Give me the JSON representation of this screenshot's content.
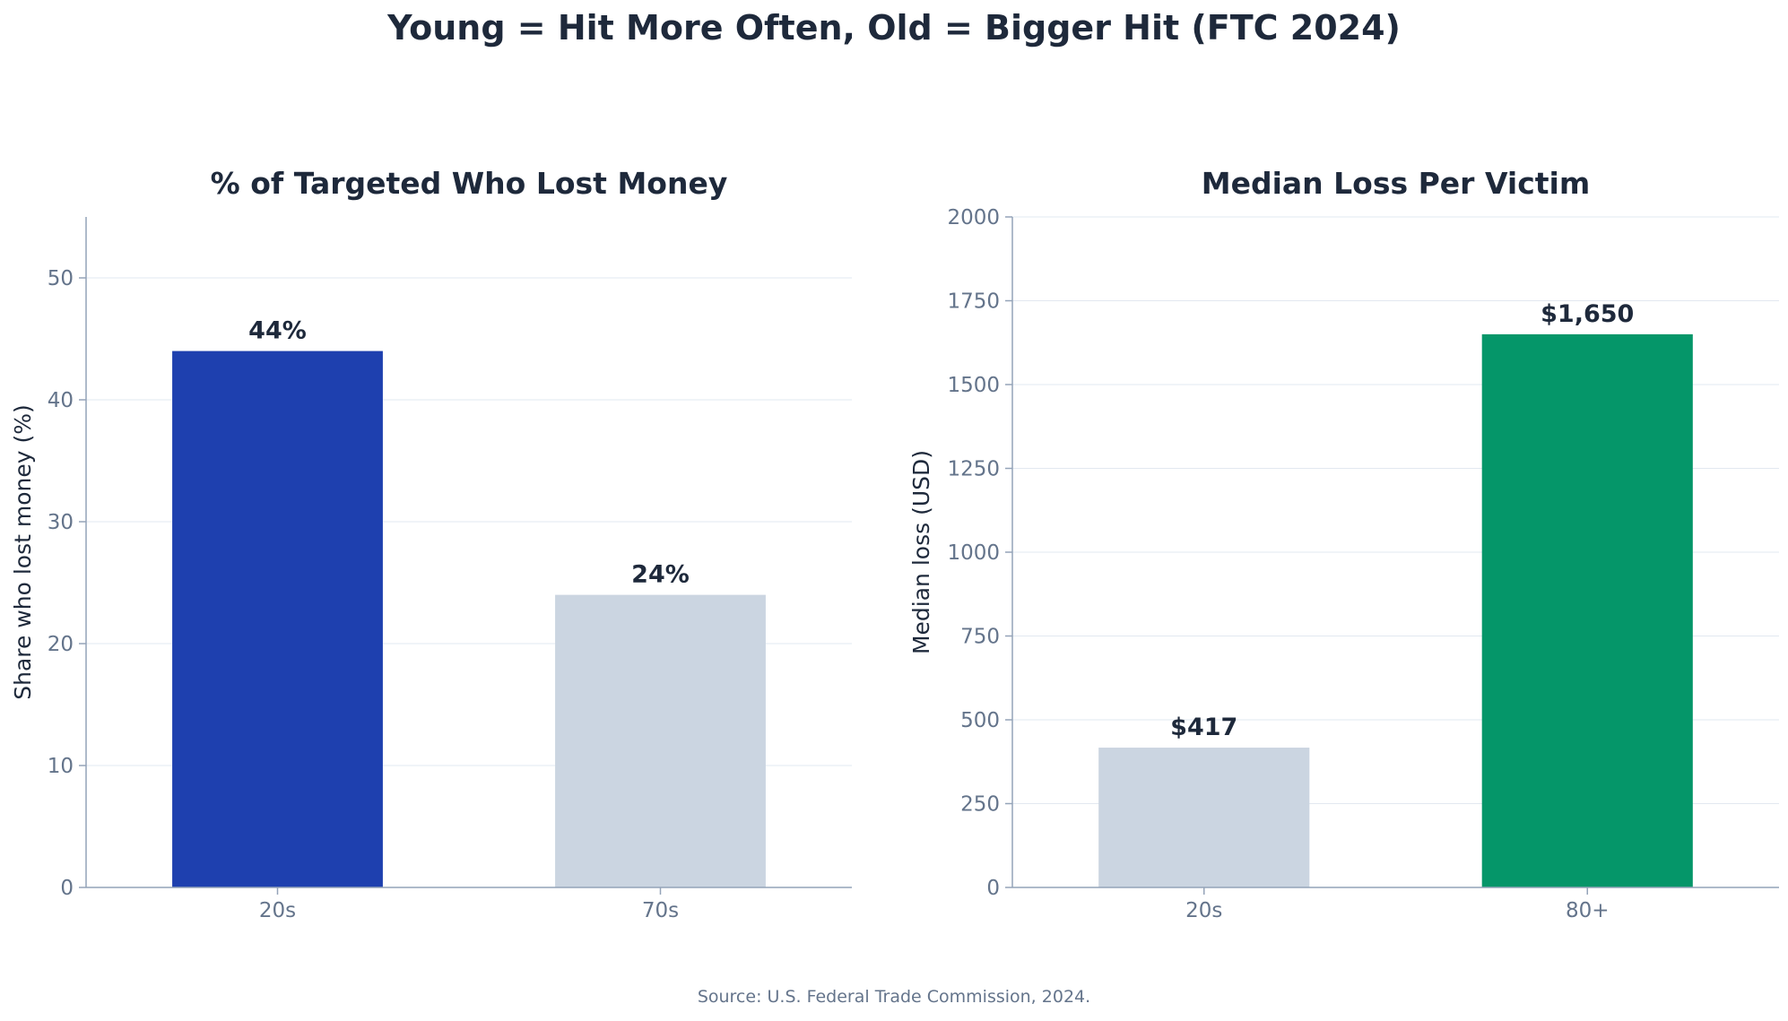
{
  "figure": {
    "title": "Young = Hit More Often, Old = Bigger Hit (FTC 2024)",
    "source": "Source: U.S. Federal Trade Commission, 2024."
  },
  "colors": {
    "text": "#1e293b",
    "tick": "#64748b",
    "axis": "#94a3b8",
    "grid": "#e2e8f0",
    "highlight_blue": "#1e40af",
    "highlight_green": "#059669",
    "muted": "#cbd5e1"
  },
  "chart_data": [
    {
      "type": "bar",
      "title": "% of Targeted Who Lost Money",
      "xlabel": "",
      "ylabel": "Share who lost money (%)",
      "categories": [
        "20s",
        "70s"
      ],
      "values": [
        44,
        24
      ],
      "value_labels": [
        "44%",
        "24%"
      ],
      "bar_colors": [
        "#1e40af",
        "#cbd5e1"
      ],
      "ylim": [
        0,
        55
      ],
      "yticks": [
        0,
        10,
        20,
        30,
        40,
        50
      ],
      "ytick_labels": [
        "0",
        "10",
        "20",
        "30",
        "40",
        "50"
      ],
      "grid": true,
      "legend": "none"
    },
    {
      "type": "bar",
      "title": "Median Loss Per Victim",
      "xlabel": "",
      "ylabel": "Median loss (USD)",
      "categories": [
        "20s",
        "80+"
      ],
      "values": [
        417,
        1650
      ],
      "value_labels": [
        "$417",
        "$1,650"
      ],
      "bar_colors": [
        "#cbd5e1",
        "#059669"
      ],
      "ylim": [
        0,
        2000
      ],
      "yticks": [
        0,
        250,
        500,
        750,
        1000,
        1250,
        1500,
        1750,
        2000
      ],
      "ytick_labels": [
        "0",
        "250",
        "500",
        "750",
        "1000",
        "1250",
        "1500",
        "1750",
        "2000"
      ],
      "grid": true,
      "legend": "none"
    }
  ]
}
